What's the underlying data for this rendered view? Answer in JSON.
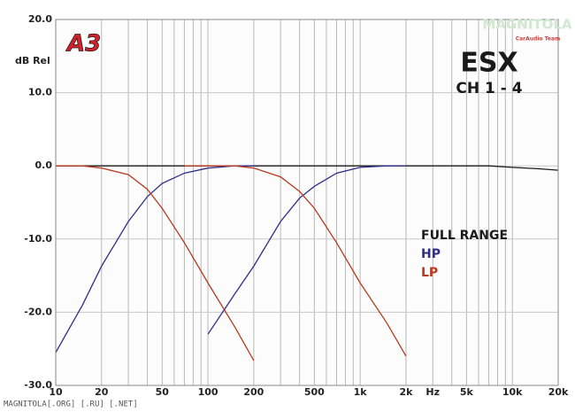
{
  "chart_data": {
    "type": "line",
    "title": "ESX",
    "subtitle": "CH 1 - 4",
    "y_label": "dB Rel",
    "logo": "A3",
    "watermark": "MAGNITOLA",
    "watermark_sub": "CarAudio Team",
    "footer": "MAGNITOLA[.ORG] [.RU] [.NET]",
    "x_log": true,
    "grid": true,
    "legend_position": "right",
    "x": [
      10,
      15,
      20,
      30,
      40,
      50,
      70,
      100,
      150,
      200,
      300,
      400,
      500,
      700,
      1000,
      1500,
      2000,
      3000,
      5000,
      7000,
      10000,
      15000,
      20000
    ],
    "series": [
      {
        "name": "FULL RANGE",
        "color": "#1a1a1a",
        "values": [
          0,
          0,
          0,
          0,
          0,
          0,
          0,
          0,
          0,
          0,
          0,
          0,
          0,
          0,
          0,
          0,
          0,
          0,
          0,
          0,
          -0.2,
          -0.4,
          -0.6
        ]
      },
      {
        "name": "HP",
        "color": "#2e2e8a",
        "values": [
          -25.5,
          -19,
          -13.7,
          -7.6,
          -4.2,
          -2.4,
          -1,
          -0.3,
          0,
          0,
          null,
          null,
          null,
          null,
          null,
          null,
          null,
          null,
          null,
          null,
          null,
          null,
          null
        ]
      },
      {
        "name": "HP",
        "color": "#2e2e8a",
        "values": [
          null,
          null,
          null,
          null,
          null,
          null,
          null,
          -23,
          -17.5,
          -13.7,
          -7.6,
          -4.4,
          -2.8,
          -1,
          -0.2,
          0,
          0,
          null,
          null,
          null,
          null,
          null,
          null
        ]
      },
      {
        "name": "LP",
        "color": "#b8391f",
        "values": [
          0,
          0,
          -0.3,
          -1.2,
          -3.2,
          -5.8,
          -10.5,
          -16,
          -22,
          -26.6,
          null,
          null,
          null,
          null,
          null,
          null,
          null,
          null,
          null,
          null,
          null,
          null,
          null
        ]
      },
      {
        "name": "LP",
        "color": "#b8391f",
        "values": [
          null,
          null,
          null,
          null,
          null,
          null,
          0,
          0,
          0,
          -0.3,
          -1.5,
          -3.5,
          -5.8,
          -10.5,
          -16,
          -21.5,
          -26,
          null,
          null,
          null,
          null,
          null,
          null
        ]
      }
    ],
    "xlim": [
      10,
      20000
    ],
    "ylim": [
      -30,
      20
    ],
    "xticks": [
      10,
      20,
      50,
      100,
      200,
      500,
      {
        "value": 1000,
        "label": "1k"
      },
      {
        "value": 2000,
        "label": "2k"
      },
      {
        "value": 3000,
        "label": "Hz"
      },
      {
        "value": 5000,
        "label": "5k"
      },
      {
        "value": 10000,
        "label": "10k"
      },
      {
        "value": 20000,
        "label": "20k"
      }
    ],
    "xgrid": [
      20,
      30,
      40,
      50,
      60,
      70,
      80,
      90,
      100,
      200,
      300,
      400,
      500,
      600,
      700,
      800,
      900,
      1000,
      2000,
      3000,
      4000,
      5000,
      6000,
      7000,
      8000,
      9000,
      10000
    ],
    "yticks": [
      {
        "value": 20,
        "label": "20.0"
      },
      {
        "value": 10,
        "label": "10.0"
      },
      {
        "value": 0,
        "label": "0.0"
      },
      {
        "value": -10,
        "label": "-10.0"
      },
      {
        "value": -20,
        "label": "-20.0"
      },
      {
        "value": -30,
        "label": "-30.0"
      }
    ]
  }
}
